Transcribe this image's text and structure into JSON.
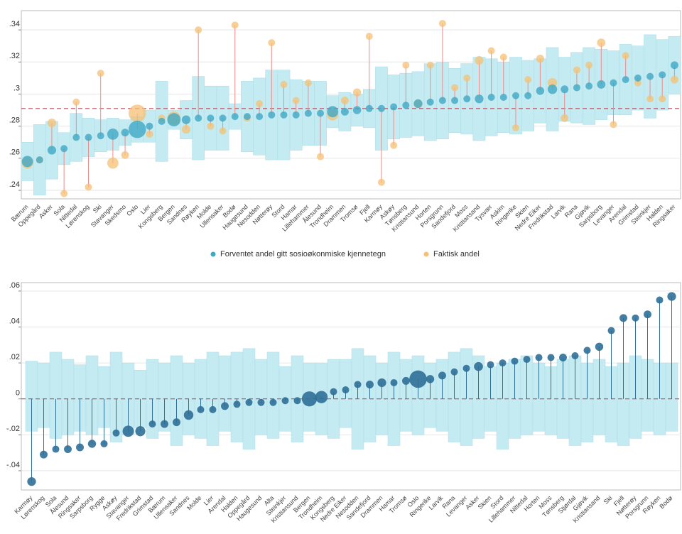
{
  "chart_data": [
    {
      "type": "dot_band",
      "categories": [
        "Bærum",
        "Oppegård",
        "Asker",
        "Sola",
        "Nittedal",
        "Lørenskog",
        "Ski",
        "Stavanger",
        "Skedsmo",
        "Oslo",
        "Lier",
        "Kongsberg",
        "Bergen",
        "Sandnes",
        "Røyken",
        "Molde",
        "Ullensaker",
        "Bodø",
        "Haugesund",
        "Nesodden",
        "Nøtterøy",
        "Stord",
        "Hamar",
        "Lillehammer",
        "Ålesund",
        "Trondheim",
        "Drammen",
        "Tromsø",
        "Fjell",
        "Karmøy",
        "Askøy",
        "Tønsberg",
        "Kristiansund",
        "Horten",
        "Porsgrunn",
        "Sandefjord",
        "Moss",
        "Kristiansand",
        "Tysvær",
        "Askim",
        "Ringerike",
        "Skien",
        "Nedre Eiker",
        "Fredrikstad",
        "Larvik",
        "Rana",
        "Gjøvik",
        "Sarpsborg",
        "Levanger",
        "Arendal",
        "Grimstad",
        "Steinkjer",
        "Halden",
        "Ringsaker"
      ],
      "series": [
        {
          "name": "Forventet andel gitt sosioøkonmiske kjennetegn",
          "color": "#3fa9c4",
          "values": [
            0.258,
            0.259,
            0.265,
            0.266,
            0.273,
            0.273,
            0.274,
            0.275,
            0.276,
            0.278,
            0.28,
            0.283,
            0.284,
            0.284,
            0.285,
            0.285,
            0.285,
            0.286,
            0.286,
            0.286,
            0.287,
            0.287,
            0.287,
            0.288,
            0.288,
            0.289,
            0.289,
            0.29,
            0.291,
            0.291,
            0.292,
            0.293,
            0.294,
            0.295,
            0.296,
            0.296,
            0.297,
            0.297,
            0.298,
            0.298,
            0.299,
            0.299,
            0.302,
            0.303,
            0.303,
            0.304,
            0.305,
            0.306,
            0.307,
            0.309,
            0.31,
            0.311,
            0.312,
            0.318
          ]
        },
        {
          "name": "Faktisk andel",
          "color": "#f5c074",
          "values": [
            0.257,
            0.259,
            0.282,
            0.238,
            0.295,
            0.242,
            0.313,
            0.257,
            0.262,
            0.288,
            0.275,
            0.285,
            0.285,
            0.278,
            0.34,
            0.28,
            0.277,
            0.343,
            0.285,
            0.294,
            0.332,
            0.306,
            0.296,
            0.307,
            0.261,
            0.287,
            0.296,
            0.301,
            0.336,
            0.245,
            0.268,
            0.318,
            0.294,
            0.318,
            0.344,
            0.304,
            0.31,
            0.321,
            0.327,
            0.323,
            0.279,
            0.309,
            0.322,
            0.307,
            0.285,
            0.315,
            0.318,
            0.332,
            0.281,
            0.324,
            0.307,
            0.297,
            0.297,
            0.309
          ]
        }
      ],
      "band_halfwidth": [
        0.012,
        0.022,
        0.018,
        0.01,
        0.015,
        0.012,
        0.01,
        0.01,
        0.008,
        0.008,
        0.01,
        0.025,
        0.006,
        0.012,
        0.026,
        0.02,
        0.02,
        0.008,
        0.022,
        0.024,
        0.028,
        0.028,
        0.022,
        0.02,
        0.02,
        0.01,
        0.012,
        0.01,
        0.012,
        0.026,
        0.02,
        0.02,
        0.02,
        0.024,
        0.024,
        0.02,
        0.022,
        0.026,
        0.024,
        0.022,
        0.024,
        0.022,
        0.02,
        0.026,
        0.02,
        0.022,
        0.024,
        0.022,
        0.02,
        0.022,
        0.02,
        0.026,
        0.022,
        0.018
      ],
      "band_color": "#c4ebf2",
      "sizes": [
        2.5,
        1,
        1.5,
        1,
        1,
        1,
        1,
        2.5,
        1.2,
        6,
        1,
        1,
        3.5,
        1.5,
        1,
        1,
        1,
        1,
        1,
        1,
        1,
        1,
        1,
        1,
        1,
        2.5,
        1.2,
        1.3,
        1,
        1,
        1,
        1,
        1.5,
        1,
        1,
        1,
        1,
        1.5,
        1,
        1,
        1,
        1,
        1.3,
        1.8,
        1.2,
        1,
        1,
        1.4,
        1,
        1,
        1,
        1,
        1,
        1.2
      ],
      "reference_line": 0.291,
      "ylim": [
        0.2347,
        0.352
      ],
      "yticks": [
        {
          "value": 0.24,
          "label": ".24"
        },
        {
          "value": 0.26,
          "label": ".26"
        },
        {
          "value": 0.28,
          "label": ".28"
        },
        {
          "value": 0.3,
          "label": ".3"
        },
        {
          "value": 0.32,
          "label": ".32"
        },
        {
          "value": 0.34,
          "label": ".34"
        }
      ],
      "grid": true,
      "legend": "bottom"
    },
    {
      "type": "lollipop_band",
      "categories": [
        "Karmøy",
        "Lørenskog",
        "Sola",
        "Ålesund",
        "Ringsaker",
        "Sarpsborg",
        "Rygge",
        "Askøy",
        "Stavanger",
        "Fredrikstad",
        "Grimstad",
        "Bærum",
        "Ullensaker",
        "Sandnes",
        "Molde",
        "Lier",
        "Arendal",
        "Halden",
        "Oppegård",
        "Haugesund",
        "Alta",
        "Steinkjer",
        "Kristiansund",
        "Bergen",
        "Trondheim",
        "Kongsberg",
        "Nedre Eiker",
        "Nesodden",
        "Sandefjord",
        "Drammen",
        "Hamar",
        "Tromsø",
        "Oslo",
        "Ringerike",
        "Larvik",
        "Rana",
        "Levanger",
        "Asker",
        "Skien",
        "Stord",
        "Lillehammer",
        "Nittedal",
        "Horten",
        "Moss",
        "Tønsberg",
        "Stjørdal",
        "Gjøvik",
        "Kristiansand",
        "Ski",
        "Fjell",
        "Nøtterøy",
        "Porsgrunn",
        "Røyken",
        "Bodø"
      ],
      "values": [
        -0.046,
        -0.031,
        -0.028,
        -0.028,
        -0.027,
        -0.025,
        -0.025,
        -0.019,
        -0.018,
        -0.018,
        -0.014,
        -0.014,
        -0.013,
        -0.009,
        -0.006,
        -0.006,
        -0.004,
        -0.003,
        -0.002,
        -0.002,
        -0.002,
        -0.001,
        -0.001,
        0.0,
        0.001,
        0.004,
        0.005,
        0.008,
        0.008,
        0.009,
        0.009,
        0.01,
        0.011,
        0.011,
        0.013,
        0.015,
        0.017,
        0.018,
        0.019,
        0.02,
        0.021,
        0.022,
        0.023,
        0.023,
        0.023,
        0.024,
        0.027,
        0.029,
        0.038,
        0.045,
        0.045,
        0.047,
        0.055,
        0.057
      ],
      "color": "#2f6f97",
      "band_upper": [
        0.021,
        0.02,
        0.026,
        0.022,
        0.019,
        0.024,
        0.018,
        0.026,
        0.02,
        0.016,
        0.022,
        0.02,
        0.024,
        0.02,
        0.022,
        0.026,
        0.024,
        0.026,
        0.028,
        0.022,
        0.026,
        0.018,
        0.024,
        0.02,
        0.02,
        0.022,
        0.022,
        0.028,
        0.024,
        0.02,
        0.026,
        0.022,
        0.024,
        0.02,
        0.022,
        0.026,
        0.028,
        0.024,
        0.018,
        0.02,
        0.022,
        0.024,
        0.02,
        0.018,
        0.022,
        0.024,
        0.02,
        0.022,
        0.018,
        0.02,
        0.024,
        0.022,
        0.02,
        0.02
      ],
      "band_lower": [
        -0.018,
        -0.016,
        -0.022,
        -0.02,
        -0.018,
        -0.02,
        -0.016,
        -0.024,
        -0.02,
        -0.016,
        -0.022,
        -0.018,
        -0.026,
        -0.02,
        -0.022,
        -0.026,
        -0.018,
        -0.024,
        -0.028,
        -0.02,
        -0.022,
        -0.018,
        -0.024,
        -0.018,
        -0.02,
        -0.022,
        -0.016,
        -0.028,
        -0.024,
        -0.02,
        -0.026,
        -0.018,
        -0.02,
        -0.016,
        -0.018,
        -0.024,
        -0.026,
        -0.022,
        -0.018,
        -0.028,
        -0.022,
        -0.02,
        -0.018,
        -0.02,
        -0.022,
        -0.026,
        -0.024,
        -0.02,
        -0.024,
        -0.026,
        -0.022,
        -0.018,
        -0.02,
        -0.018
      ],
      "band_color": "#c4ebf2",
      "sizes": [
        1.5,
        1.2,
        1,
        1.2,
        1.2,
        1.3,
        1,
        1,
        2.5,
        2,
        1,
        1.2,
        1.2,
        1.8,
        1,
        1,
        1.2,
        1,
        1,
        1,
        1,
        1,
        1,
        4.5,
        3,
        1,
        1,
        1,
        1.2,
        1.5,
        1,
        1.2,
        6,
        1.3,
        1.2,
        1,
        1,
        1.6,
        1,
        1,
        1,
        1,
        1,
        1,
        1.2,
        1,
        1,
        1.3,
        1,
        1.2,
        1,
        1.2,
        1,
        1.5
      ],
      "reference_line": 0,
      "ylim": [
        -0.0507,
        0.0647
      ],
      "yticks": [
        {
          "value": -0.04,
          "label": "-.04"
        },
        {
          "value": -0.02,
          "label": "-.02"
        },
        0,
        {
          "value": 0.02,
          "label": ".02"
        },
        {
          "value": 0.04,
          "label": ".04"
        },
        {
          "value": 0.06,
          "label": ".06"
        }
      ],
      "grid": true
    }
  ]
}
